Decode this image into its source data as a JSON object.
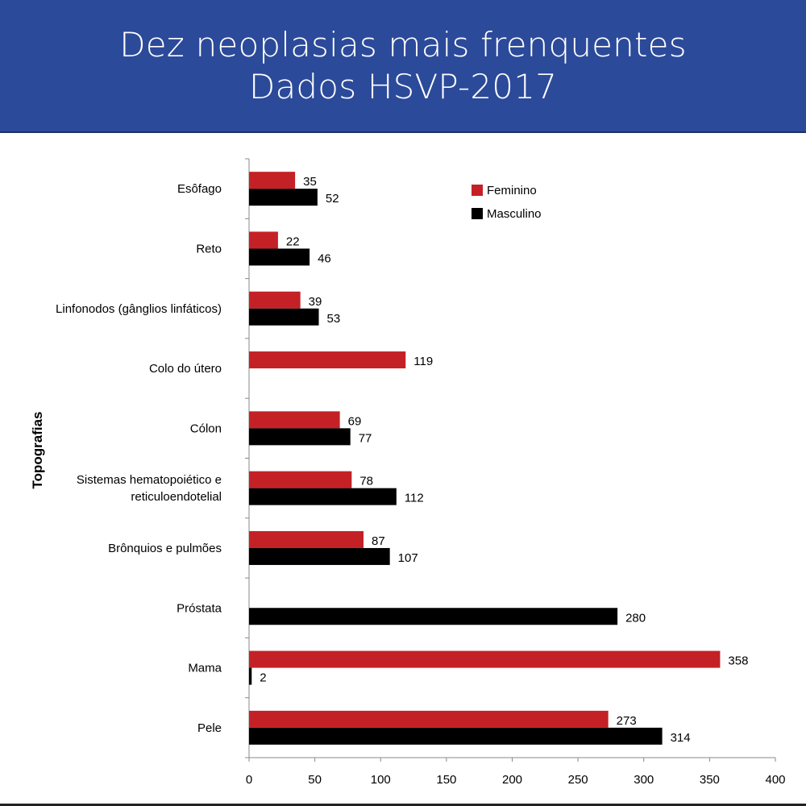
{
  "header": {
    "title_line1": "Dez neoplasias mais frenquentes",
    "title_line2": "Dados HSVP-2017"
  },
  "colors": {
    "header_bg": "#2c4a9a",
    "feminino": "#c42126",
    "masculino": "#000000"
  },
  "chart_data": {
    "type": "bar",
    "orientation": "horizontal",
    "ylabel": "Topografias",
    "xlabel": "",
    "xlim": [
      0,
      400
    ],
    "xticks": [
      0,
      50,
      100,
      150,
      200,
      250,
      300,
      350,
      400
    ],
    "grid": false,
    "legend_position": "top-right",
    "categories": [
      [
        "Esôfago"
      ],
      [
        "Reto"
      ],
      [
        "Linfonodos (gânglios linfáticos)"
      ],
      [
        "Colo do útero"
      ],
      [
        "Cólon"
      ],
      [
        "Sistemas hematopoiético e",
        "reticuloendotelial"
      ],
      [
        "Brônquios e pulmões"
      ],
      [
        "Próstata"
      ],
      [
        "Mama"
      ],
      [
        "Pele"
      ]
    ],
    "series": [
      {
        "name": "Feminino",
        "color": "#c42126",
        "values": [
          35,
          22,
          39,
          119,
          69,
          78,
          87,
          null,
          358,
          273
        ]
      },
      {
        "name": "Masculino",
        "color": "#000000",
        "values": [
          52,
          46,
          53,
          null,
          77,
          112,
          107,
          280,
          2,
          314
        ]
      }
    ]
  }
}
